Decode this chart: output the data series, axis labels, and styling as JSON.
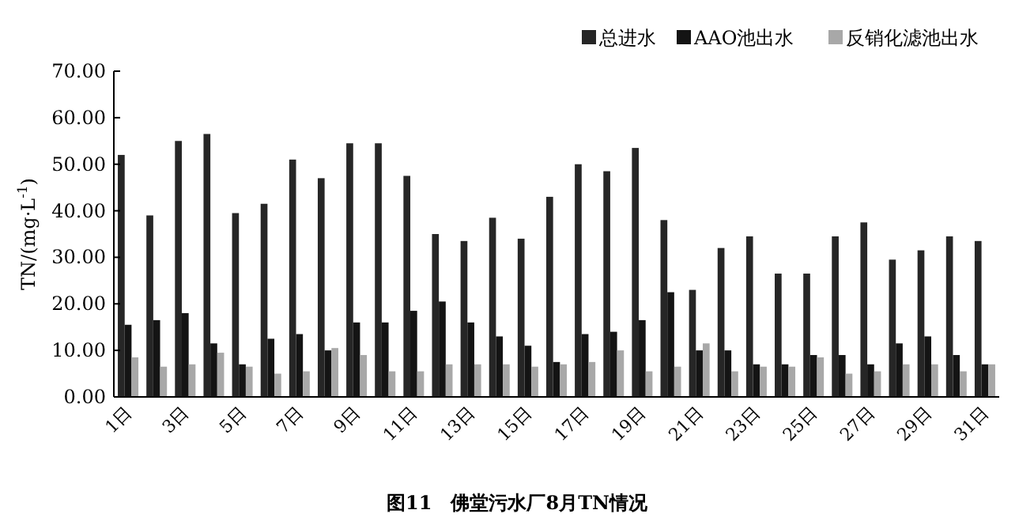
{
  "chart_data": {
    "type": "bar",
    "title": "图11　佛堂污水厂8月TN情况",
    "ylabel": "TN/(mg·L$^{-1}$)",
    "categories": [
      "1日",
      null,
      "3日",
      null,
      "5日",
      null,
      "7日",
      null,
      "9日",
      null,
      "11日",
      null,
      "13日",
      null,
      "15日",
      null,
      "17日",
      null,
      "19日",
      null,
      "21日",
      null,
      "23日",
      null,
      "25日",
      null,
      "27日",
      null,
      "29日",
      null,
      "31日"
    ],
    "series": [
      {
        "name": "总进水",
        "color": "#262626",
        "values": [
          52,
          39,
          55,
          56.5,
          39.5,
          41.5,
          51,
          47,
          54.5,
          54.5,
          47.5,
          35,
          33.5,
          38.5,
          34,
          43,
          50,
          48.5,
          53.5,
          38,
          23,
          32,
          34.5,
          26.5,
          26.5,
          34.5,
          37.5,
          29.5,
          31.5,
          34.5,
          33.5
        ]
      },
      {
        "name": "AAO池出水",
        "color": "#141414",
        "values": [
          15.5,
          16.5,
          18,
          11.5,
          7,
          12.5,
          13.5,
          10,
          16,
          16,
          18.5,
          20.5,
          16,
          13,
          11,
          7.5,
          13.5,
          14,
          16.5,
          22.5,
          10,
          10,
          7,
          7,
          9,
          9,
          7,
          11.5,
          13,
          9,
          7
        ]
      },
      {
        "name": "反销化滤池出水",
        "color": "#a8a8a8",
        "values": [
          8.5,
          6.5,
          7,
          9.5,
          6.5,
          5,
          5.5,
          10.5,
          9,
          5.5,
          5.5,
          7,
          7,
          7,
          6.5,
          7,
          7.5,
          10,
          5.5,
          6.5,
          11.5,
          5.5,
          6.5,
          6.5,
          8.5,
          5,
          5.5,
          7,
          7,
          5.5,
          7
        ]
      }
    ],
    "ylim": [
      0,
      70
    ],
    "yticks": [
      {
        "value": 0,
        "label": "0.00"
      },
      {
        "value": 10,
        "label": "10.00"
      },
      {
        "value": 20,
        "label": "20.00"
      },
      {
        "value": 30,
        "label": "30.00"
      },
      {
        "value": 40,
        "label": "40.00"
      },
      {
        "value": 50,
        "label": "50.00"
      },
      {
        "value": 60,
        "label": "60.00"
      },
      {
        "value": 70,
        "label": "70.00"
      }
    ],
    "legend": "top right"
  }
}
